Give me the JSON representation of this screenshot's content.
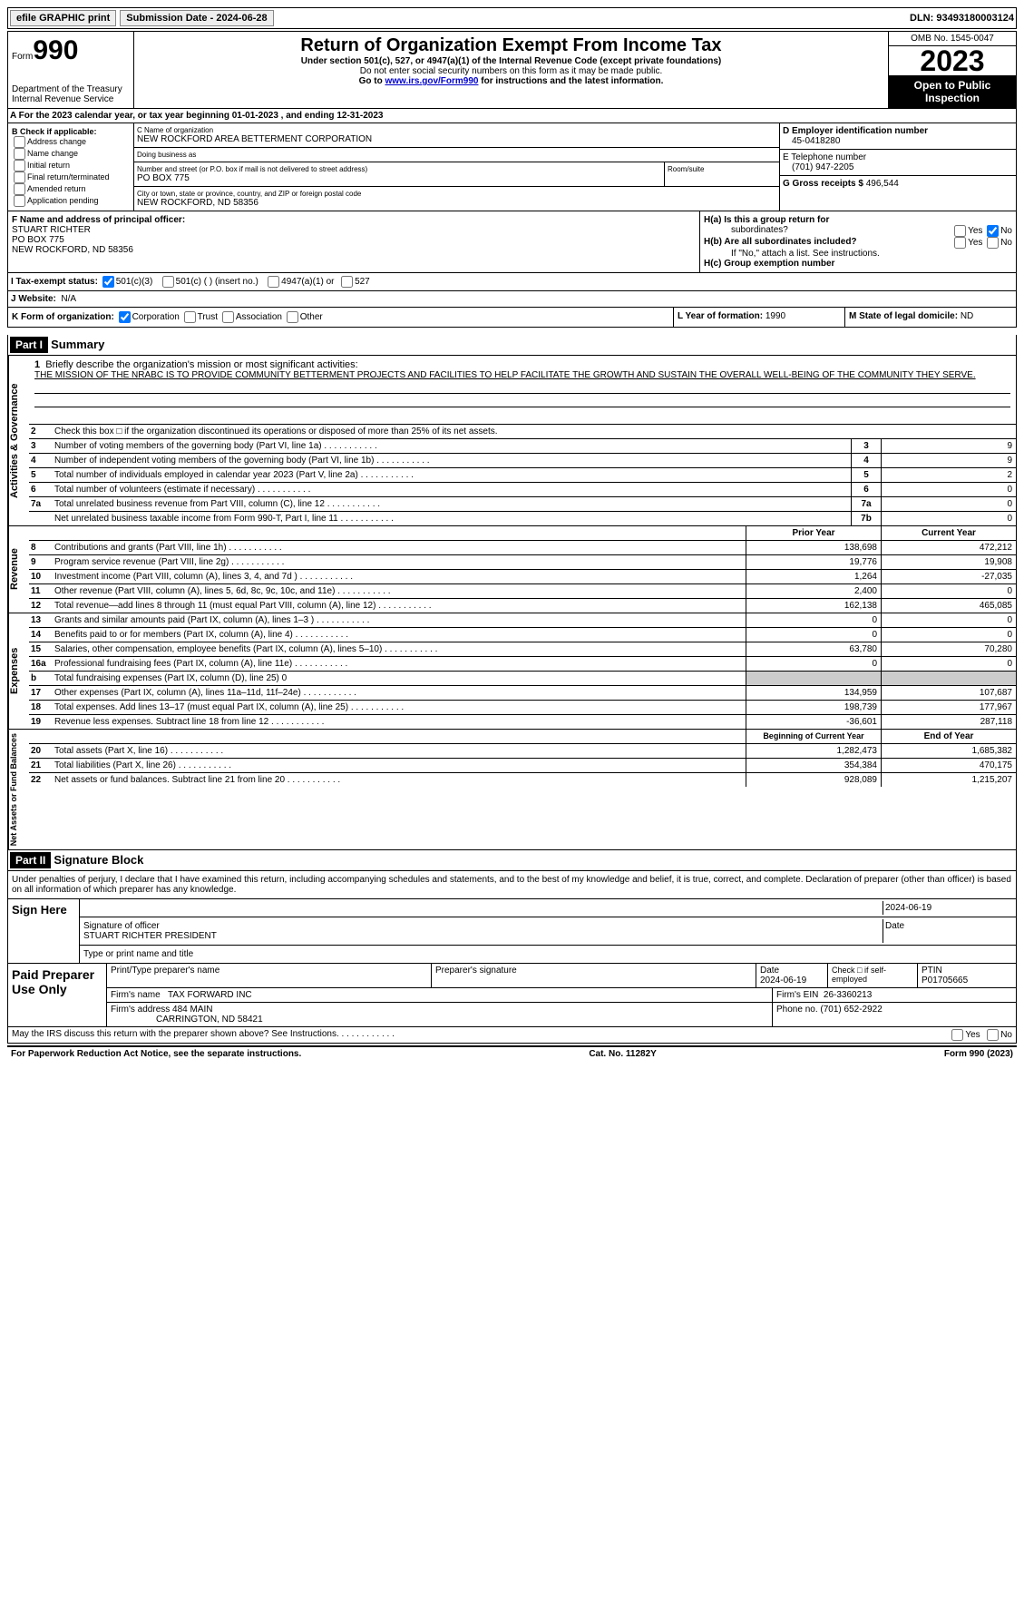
{
  "top": {
    "efile": "efile GRAPHIC print",
    "sub_label": "Submission Date - ",
    "sub_date": "2024-06-28",
    "dln_label": "DLN: ",
    "dln": "93493180003124"
  },
  "header": {
    "form": "Form",
    "num": "990",
    "title": "Return of Organization Exempt From Income Tax",
    "sub": "Under section 501(c), 527, or 4947(a)(1) of the Internal Revenue Code (except private foundations)",
    "note1": "Do not enter social security numbers on this form as it may be made public.",
    "note2_pre": "Go to ",
    "note2_link": "www.irs.gov/Form990",
    "note2_post": " for instructions and the latest information.",
    "dept": "Department of the Treasury\nInternal Revenue Service",
    "omb": "OMB No. 1545-0047",
    "year": "2023",
    "open": "Open to Public Inspection"
  },
  "row_a": "A  For the 2023 calendar year, or tax year beginning 01-01-2023    , and ending 12-31-2023",
  "b": {
    "label": "B Check if applicable:",
    "items": [
      "Address change",
      "Name change",
      "Initial return",
      "Final return/terminated",
      "Amended return",
      "Application pending"
    ]
  },
  "c": {
    "name_lbl": "C Name of organization",
    "name": "NEW ROCKFORD AREA BETTERMENT CORPORATION",
    "dba_lbl": "Doing business as",
    "dba": "",
    "street_lbl": "Number and street (or P.O. box if mail is not delivered to street address)",
    "street": "PO BOX 775",
    "room_lbl": "Room/suite",
    "room": "",
    "city_lbl": "City or town, state or province, country, and ZIP or foreign postal code",
    "city": "NEW ROCKFORD, ND  58356"
  },
  "d": {
    "ein_lbl": "D Employer identification number",
    "ein": "45-0418280",
    "tel_lbl": "E Telephone number",
    "tel": "(701) 947-2205",
    "gross_lbl": "G Gross receipts $ ",
    "gross": "496,544"
  },
  "f": {
    "lbl": "F  Name and address of principal officer:",
    "name": "STUART RICHTER",
    "street": "PO BOX 775",
    "city": "NEW ROCKFORD, ND  58356"
  },
  "h": {
    "a_lbl": "H(a)  Is this a group return for",
    "a_sub": "subordinates?",
    "b_lbl": "H(b)  Are all subordinates included?",
    "b_note": "If \"No,\" attach a list. See instructions.",
    "c_lbl": "H(c)  Group exemption number",
    "yes": "Yes",
    "no": "No",
    "a_answer": "No"
  },
  "i": {
    "lbl": "I   Tax-exempt status:",
    "o1": "501(c)(3)",
    "o2": "501(c) (  ) (insert no.)",
    "o3": "4947(a)(1) or",
    "o4": "527"
  },
  "j": {
    "lbl": "J   Website:",
    "val": "N/A"
  },
  "k": {
    "lbl": "K Form of organization:",
    "o1": "Corporation",
    "o2": "Trust",
    "o3": "Association",
    "o4": "Other"
  },
  "l": {
    "lbl": "L Year of formation: ",
    "val": "1990"
  },
  "m": {
    "lbl": "M State of legal domicile: ",
    "val": "ND"
  },
  "part1": {
    "label": "Part I",
    "title": "Summary"
  },
  "governance": {
    "vert": "Activities & Governance",
    "q1": "Briefly describe the organization's mission or most significant activities:",
    "mission": "THE MISSION OF THE NRABC IS TO PROVIDE COMMUNITY BETTERMENT PROJECTS AND FACILITIES TO HELP FACILITATE THE GROWTH AND SUSTAIN THE OVERALL WELL-BEING OF THE COMMUNITY THEY SERVE.",
    "q2": "Check this box □ if the organization discontinued its operations or disposed of more than 25% of its net assets.",
    "lines": [
      {
        "n": "3",
        "t": "Number of voting members of the governing body (Part VI, line 1a)",
        "box": "3",
        "v": "9"
      },
      {
        "n": "4",
        "t": "Number of independent voting members of the governing body (Part VI, line 1b)",
        "box": "4",
        "v": "9"
      },
      {
        "n": "5",
        "t": "Total number of individuals employed in calendar year 2023 (Part V, line 2a)",
        "box": "5",
        "v": "2"
      },
      {
        "n": "6",
        "t": "Total number of volunteers (estimate if necessary)",
        "box": "6",
        "v": "0"
      },
      {
        "n": "7a",
        "t": "Total unrelated business revenue from Part VIII, column (C), line 12",
        "box": "7a",
        "v": "0"
      },
      {
        "n": "",
        "t": "Net unrelated business taxable income from Form 990-T, Part I, line 11",
        "box": "7b",
        "v": "0"
      }
    ]
  },
  "revenue": {
    "vert": "Revenue",
    "head_prior": "Prior Year",
    "head_current": "Current Year",
    "lines": [
      {
        "n": "8",
        "t": "Contributions and grants (Part VIII, line 1h)",
        "p": "138,698",
        "c": "472,212"
      },
      {
        "n": "9",
        "t": "Program service revenue (Part VIII, line 2g)",
        "p": "19,776",
        "c": "19,908"
      },
      {
        "n": "10",
        "t": "Investment income (Part VIII, column (A), lines 3, 4, and 7d )",
        "p": "1,264",
        "c": "-27,035"
      },
      {
        "n": "11",
        "t": "Other revenue (Part VIII, column (A), lines 5, 6d, 8c, 9c, 10c, and 11e)",
        "p": "2,400",
        "c": "0"
      },
      {
        "n": "12",
        "t": "Total revenue—add lines 8 through 11 (must equal Part VIII, column (A), line 12)",
        "p": "162,138",
        "c": "465,085"
      }
    ]
  },
  "expenses": {
    "vert": "Expenses",
    "lines": [
      {
        "n": "13",
        "t": "Grants and similar amounts paid (Part IX, column (A), lines 1–3 )",
        "p": "0",
        "c": "0"
      },
      {
        "n": "14",
        "t": "Benefits paid to or for members (Part IX, column (A), line 4)",
        "p": "0",
        "c": "0"
      },
      {
        "n": "15",
        "t": "Salaries, other compensation, employee benefits (Part IX, column (A), lines 5–10)",
        "p": "63,780",
        "c": "70,280"
      },
      {
        "n": "16a",
        "t": "Professional fundraising fees (Part IX, column (A), line 11e)",
        "p": "0",
        "c": "0"
      },
      {
        "n": "b",
        "t": "Total fundraising expenses (Part IX, column (D), line 25) 0",
        "p": "",
        "c": "",
        "shaded": true
      },
      {
        "n": "17",
        "t": "Other expenses (Part IX, column (A), lines 11a–11d, 11f–24e)",
        "p": "134,959",
        "c": "107,687"
      },
      {
        "n": "18",
        "t": "Total expenses. Add lines 13–17 (must equal Part IX, column (A), line 25)",
        "p": "198,739",
        "c": "177,967"
      },
      {
        "n": "19",
        "t": "Revenue less expenses. Subtract line 18 from line 12",
        "p": "-36,601",
        "c": "287,118"
      }
    ]
  },
  "netassets": {
    "vert": "Net Assets or Fund Balances",
    "head_begin": "Beginning of Current Year",
    "head_end": "End of Year",
    "lines": [
      {
        "n": "20",
        "t": "Total assets (Part X, line 16)",
        "p": "1,282,473",
        "c": "1,685,382"
      },
      {
        "n": "21",
        "t": "Total liabilities (Part X, line 26)",
        "p": "354,384",
        "c": "470,175"
      },
      {
        "n": "22",
        "t": "Net assets or fund balances. Subtract line 21 from line 20",
        "p": "928,089",
        "c": "1,215,207"
      }
    ]
  },
  "part2": {
    "label": "Part II",
    "title": "Signature Block"
  },
  "sig": {
    "decl": "Under penalties of perjury, I declare that I have examined this return, including accompanying schedules and statements, and to the best of my knowledge and belief, it is true, correct, and complete. Declaration of preparer (other than officer) is based on all information of which preparer has any knowledge.",
    "here": "Sign Here",
    "date": "2024-06-19",
    "sig_lbl": "Signature of officer",
    "name": "STUART RICHTER  PRESIDENT",
    "type_lbl": "Type or print name and title",
    "date_lbl": "Date"
  },
  "prep": {
    "title": "Paid Preparer Use Only",
    "name_lbl": "Print/Type preparer's name",
    "sig_lbl": "Preparer's signature",
    "date_lbl": "Date",
    "date": "2024-06-19",
    "check_lbl": "Check □ if self-employed",
    "ptin_lbl": "PTIN",
    "ptin": "P01705665",
    "firm_name_lbl": "Firm's name",
    "firm_name": "TAX FORWARD INC",
    "firm_ein_lbl": "Firm's EIN",
    "firm_ein": "26-3360213",
    "firm_addr_lbl": "Firm's address",
    "firm_addr": "484 MAIN",
    "firm_city": "CARRINGTON, ND  58421",
    "phone_lbl": "Phone no.",
    "phone": "(701) 652-2922"
  },
  "discuss": {
    "q": "May the IRS discuss this return with the preparer shown above? See Instructions.",
    "yes": "Yes",
    "no": "No"
  },
  "footer": {
    "left": "For Paperwork Reduction Act Notice, see the separate instructions.",
    "mid": "Cat. No. 11282Y",
    "right": "Form 990 (2023)"
  }
}
